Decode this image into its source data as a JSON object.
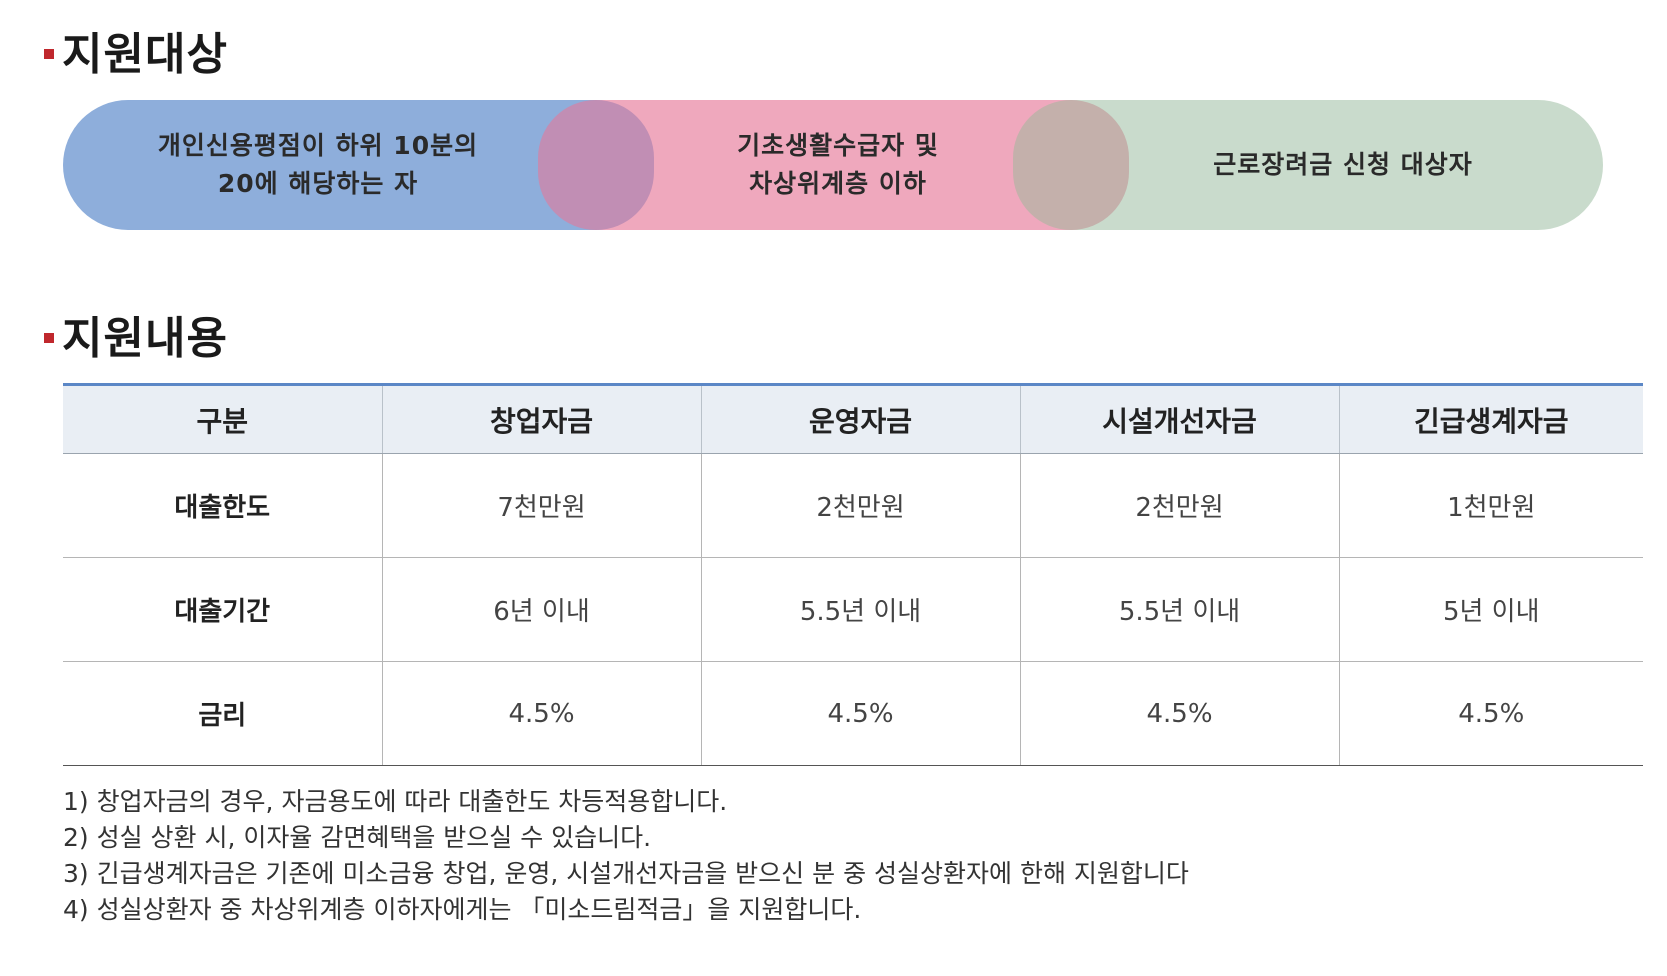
{
  "sections": {
    "target_title": "지원대상",
    "content_title": "지원내용"
  },
  "target": {
    "items": [
      {
        "line1": "개인신용평점이 하위 10분의",
        "line2": "20에 해당하는 자"
      },
      {
        "line1": "기초생활수급자 및",
        "line2": "차상위계층 이하"
      },
      {
        "line1": "근로장려금 신청 대상자",
        "line2": ""
      }
    ],
    "colors": {
      "first": "#8eaedb",
      "second": "#efa8bd",
      "third": "#c9dbcc"
    }
  },
  "table": {
    "headers": [
      "구분",
      "창업자금",
      "운영자금",
      "시설개선자금",
      "긴급생계자금"
    ],
    "rows": [
      {
        "label": "대출한도",
        "cells": [
          "7천만원",
          "2천만원",
          "2천만원",
          "1천만원"
        ]
      },
      {
        "label": "대출기간",
        "cells": [
          "6년 이내",
          "5.5년 이내",
          "5.5년 이내",
          "5년 이내"
        ]
      },
      {
        "label": "금리",
        "cells": [
          "4.5%",
          "4.5%",
          "4.5%",
          "4.5%"
        ]
      }
    ]
  },
  "notes": [
    "1) 창업자금의 경우, 자금용도에 따라 대출한도 차등적용합니다.",
    "2) 성실 상환 시, 이자율 감면혜택을 받으실 수 있습니다.",
    "3) 긴급생계자금은 기존에 미소금융 창업, 운영, 시설개선자금을 받으신 분 중 성실상환자에 한해 지원합니다",
    "4) 성실상환자 중 차상위계층 이하자에게는 「미소드림적금」을 지원합니다."
  ]
}
